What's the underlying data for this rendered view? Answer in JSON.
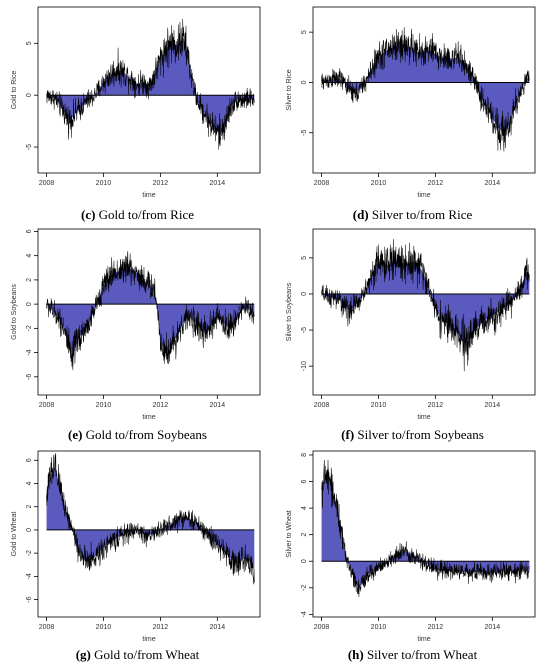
{
  "chart_data": [
    {
      "id": "c",
      "type": "area",
      "caption_letter": "(c)",
      "caption_text": " Gold to/from Rice",
      "xlabel": "time",
      "ylabel": "Gold to Rice",
      "xlim": [
        2007.7,
        2015.5
      ],
      "ylim": [
        -7.5,
        8.5
      ],
      "xticks": [
        2008,
        2010,
        2012,
        2014
      ],
      "yticks": [
        -5,
        0,
        5
      ],
      "fill": "#5b5bbf",
      "x": [
        2008.0,
        2008.3,
        2008.6,
        2008.8,
        2009.0,
        2009.2,
        2009.4,
        2009.6,
        2009.8,
        2010.0,
        2010.2,
        2010.5,
        2010.8,
        2011.0,
        2011.2,
        2011.4,
        2011.6,
        2011.8,
        2012.0,
        2012.2,
        2012.4,
        2012.6,
        2012.8,
        2013.0,
        2013.1,
        2013.3,
        2013.5,
        2013.7,
        2013.9,
        2014.1,
        2014.3,
        2014.5,
        2014.7,
        2014.9,
        2015.1,
        2015.3
      ],
      "y": [
        0.0,
        -0.3,
        -1.5,
        -2.5,
        -1.8,
        -1.2,
        -0.6,
        -0.3,
        0.4,
        1.2,
        1.8,
        2.5,
        2.0,
        1.5,
        1.0,
        1.3,
        0.8,
        2.0,
        3.5,
        4.5,
        5.0,
        4.8,
        5.5,
        3.5,
        1.5,
        -0.5,
        -1.5,
        -2.5,
        -3.2,
        -3.8,
        -2.5,
        -1.0,
        -0.4,
        -0.5,
        -0.3,
        -0.5
      ],
      "amp": 1.6
    },
    {
      "id": "d",
      "type": "area",
      "caption_letter": "(d)",
      "caption_text": " Silver to/from Rice",
      "xlabel": "time",
      "ylabel": "Silver to Rice",
      "xlim": [
        2007.7,
        2015.5
      ],
      "ylim": [
        -9.0,
        7.5
      ],
      "xticks": [
        2008,
        2010,
        2012,
        2014
      ],
      "yticks": [
        -5,
        0,
        5
      ],
      "fill": "#5b5bbf",
      "x": [
        2008.0,
        2008.3,
        2008.6,
        2008.8,
        2009.0,
        2009.2,
        2009.4,
        2009.6,
        2009.8,
        2010.0,
        2010.2,
        2010.5,
        2010.8,
        2011.0,
        2011.2,
        2011.4,
        2011.6,
        2011.8,
        2012.0,
        2012.2,
        2012.4,
        2012.6,
        2012.8,
        2013.0,
        2013.2,
        2013.4,
        2013.6,
        2013.8,
        2014.0,
        2014.2,
        2014.4,
        2014.6,
        2014.8,
        2015.0,
        2015.2,
        2015.3
      ],
      "y": [
        0.0,
        0.3,
        0.4,
        0.0,
        -0.8,
        -1.2,
        -0.5,
        0.3,
        1.5,
        2.5,
        3.0,
        3.5,
        3.8,
        3.6,
        3.4,
        3.0,
        3.0,
        3.2,
        2.8,
        2.5,
        2.4,
        2.4,
        2.5,
        2.0,
        1.0,
        0.0,
        -1.5,
        -2.5,
        -3.5,
        -4.5,
        -5.0,
        -4.2,
        -2.5,
        -0.8,
        0.3,
        0.6
      ],
      "amp": 1.6
    },
    {
      "id": "e",
      "type": "area",
      "caption_letter": "(e)",
      "caption_text": " Gold to/from Soybeans",
      "xlabel": "time",
      "ylabel": "Gold to Soybeans",
      "xlim": [
        2007.7,
        2015.5
      ],
      "ylim": [
        -7.5,
        6.2
      ],
      "xticks": [
        2008,
        2010,
        2012,
        2014
      ],
      "yticks": [
        -6,
        -4,
        -2,
        0,
        2,
        4,
        6
      ],
      "fill": "#5b5bbf",
      "x": [
        2008.0,
        2008.2,
        2008.4,
        2008.6,
        2008.8,
        2008.9,
        2009.0,
        2009.2,
        2009.4,
        2009.6,
        2009.8,
        2010.0,
        2010.3,
        2010.6,
        2010.9,
        2011.2,
        2011.5,
        2011.8,
        2011.9,
        2012.0,
        2012.2,
        2012.4,
        2012.6,
        2012.8,
        2013.0,
        2013.2,
        2013.4,
        2013.6,
        2013.8,
        2014.0,
        2014.2,
        2014.4,
        2014.6,
        2014.8,
        2015.0,
        2015.2,
        2015.3
      ],
      "y": [
        0.0,
        -0.5,
        -1.0,
        -1.8,
        -3.8,
        -4.8,
        -3.5,
        -2.5,
        -2.0,
        -1.0,
        0.3,
        1.5,
        2.5,
        2.8,
        3.0,
        2.5,
        1.8,
        1.2,
        -0.5,
        -3.0,
        -4.0,
        -3.5,
        -2.5,
        -1.5,
        -1.0,
        -1.5,
        -2.0,
        -2.5,
        -1.8,
        -1.0,
        -1.5,
        -2.0,
        -1.5,
        -0.5,
        -0.3,
        -0.6,
        -1.0
      ],
      "amp": 1.4
    },
    {
      "id": "f",
      "type": "area",
      "caption_letter": "(f)",
      "caption_text": " Silver to/from Soybeans",
      "xlabel": "time",
      "ylabel": "Silver to Soybeans",
      "xlim": [
        2007.7,
        2015.5
      ],
      "ylim": [
        -14.0,
        9.0
      ],
      "xticks": [
        2008,
        2010,
        2012,
        2014
      ],
      "yticks": [
        -10,
        -5,
        0,
        5
      ],
      "fill": "#5b5bbf",
      "x": [
        2008.0,
        2008.3,
        2008.6,
        2008.8,
        2009.0,
        2009.2,
        2009.4,
        2009.6,
        2009.8,
        2010.0,
        2010.3,
        2010.6,
        2010.9,
        2011.2,
        2011.5,
        2011.8,
        2012.0,
        2012.2,
        2012.4,
        2012.6,
        2012.8,
        2013.0,
        2013.2,
        2013.4,
        2013.6,
        2013.8,
        2014.0,
        2014.2,
        2014.4,
        2014.6,
        2014.8,
        2015.0,
        2015.1,
        2015.2,
        2015.3
      ],
      "y": [
        0.0,
        -0.5,
        -0.8,
        -1.5,
        -2.5,
        -1.5,
        -0.5,
        1.0,
        3.0,
        4.5,
        4.0,
        4.8,
        4.2,
        4.5,
        3.5,
        0.5,
        -2.0,
        -3.5,
        -4.0,
        -5.0,
        -5.5,
        -7.0,
        -6.0,
        -5.0,
        -4.0,
        -3.5,
        -3.0,
        -2.5,
        -2.0,
        -1.5,
        -0.5,
        1.0,
        2.0,
        3.0,
        2.5
      ],
      "amp": 2.2
    },
    {
      "id": "g",
      "type": "area",
      "caption_letter": "(g)",
      "caption_text": " Gold to/from Wheat",
      "xlabel": "time",
      "ylabel": "Gold to Wheat",
      "xlim": [
        2007.7,
        2015.5
      ],
      "ylim": [
        -7.5,
        6.8
      ],
      "xticks": [
        2008,
        2010,
        2012,
        2014
      ],
      "yticks": [
        -6,
        -4,
        -2,
        0,
        2,
        4,
        6
      ],
      "fill": "#5b5bbf",
      "x": [
        2008.0,
        2008.15,
        2008.3,
        2008.5,
        2008.7,
        2008.9,
        2009.1,
        2009.3,
        2009.5,
        2009.7,
        2010.0,
        2010.3,
        2010.6,
        2010.9,
        2011.2,
        2011.5,
        2011.8,
        2012.1,
        2012.4,
        2012.7,
        2012.9,
        2013.1,
        2013.3,
        2013.5,
        2013.7,
        2013.9,
        2014.1,
        2014.3,
        2014.5,
        2014.7,
        2014.9,
        2015.1,
        2015.3
      ],
      "y": [
        3.0,
        4.8,
        5.2,
        3.5,
        1.5,
        0.2,
        -1.5,
        -2.5,
        -2.8,
        -2.3,
        -1.5,
        -1.0,
        -0.5,
        -0.2,
        0.0,
        -0.5,
        -0.3,
        0.2,
        0.5,
        1.0,
        1.2,
        0.8,
        0.5,
        0.0,
        -0.5,
        -1.0,
        -1.5,
        -2.0,
        -2.5,
        -3.0,
        -2.5,
        -2.5,
        -3.5
      ],
      "amp": 1.3
    },
    {
      "id": "h",
      "type": "area",
      "caption_letter": "(h)",
      "caption_text": " Silver to/from Wheat",
      "xlabel": "time",
      "ylabel": "Silver to Wheat",
      "xlim": [
        2007.7,
        2015.5
      ],
      "ylim": [
        -4.2,
        8.3
      ],
      "xticks": [
        2008,
        2010,
        2012,
        2014
      ],
      "yticks": [
        -4,
        -2,
        0,
        2,
        4,
        6,
        8
      ],
      "fill": "#5b5bbf",
      "x": [
        2008.0,
        2008.15,
        2008.3,
        2008.5,
        2008.7,
        2008.9,
        2009.1,
        2009.3,
        2009.5,
        2009.7,
        2010.0,
        2010.3,
        2010.6,
        2010.9,
        2011.2,
        2011.5,
        2011.8,
        2012.1,
        2012.4,
        2012.7,
        2013.0,
        2013.3,
        2013.6,
        2013.9,
        2014.2,
        2014.5,
        2014.8,
        2015.1,
        2015.3
      ],
      "y": [
        5.5,
        6.5,
        6.0,
        4.5,
        2.0,
        0.0,
        -1.0,
        -2.0,
        -1.5,
        -0.8,
        -0.5,
        -0.2,
        0.5,
        0.8,
        0.5,
        0.0,
        -0.3,
        -0.6,
        -0.8,
        -0.7,
        -0.8,
        -0.8,
        -0.8,
        -0.9,
        -0.8,
        -0.7,
        -0.8,
        -0.6,
        -0.7
      ],
      "amp": 1.0
    }
  ]
}
